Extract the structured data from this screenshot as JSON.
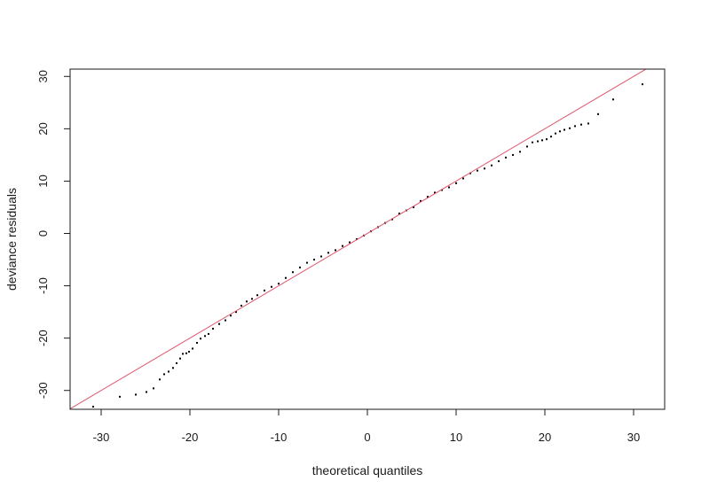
{
  "chart_data": {
    "type": "scatter",
    "title": "",
    "xlabel": "theoretical quantiles",
    "ylabel": "deviance residuals",
    "xlim": [
      -33.5,
      33.5
    ],
    "ylim": [
      -33.6,
      31.4
    ],
    "xticks": [
      -30,
      -20,
      -10,
      0,
      10,
      20,
      30
    ],
    "yticks": [
      -30,
      -20,
      -10,
      0,
      10,
      20,
      30
    ],
    "xtick_labels": [
      "-30",
      "-20",
      "-10",
      "0",
      "10",
      "20",
      "30"
    ],
    "ytick_labels": [
      "-30",
      "-20",
      "-10",
      "0",
      "10",
      "20",
      "30"
    ],
    "grid": false,
    "reference_line": {
      "slope": 1,
      "intercept": 0,
      "color": "#DF536B"
    },
    "point_color": "#000000",
    "series": [
      {
        "x": [
          -30.9,
          -27.9,
          -26.1,
          -24.9,
          -24.1,
          -23.4,
          -22.9,
          -22.4,
          -21.9,
          -21.5,
          -21.1,
          -20.8,
          -20.4,
          -20.1,
          -19.7,
          -19.2,
          -18.8,
          -18.3,
          -17.9,
          -17.4,
          -16.7,
          -16.0,
          -15.4,
          -14.8,
          -14.2,
          -13.6,
          -13.0,
          -12.4,
          -11.6,
          -10.8,
          -10.0,
          -9.2,
          -8.4,
          -7.6,
          -6.8,
          -6.0,
          -5.2,
          -4.4,
          -3.6,
          -2.8,
          -2.0,
          -1.2,
          -0.4,
          0.4,
          1.2,
          2.0,
          2.8,
          3.6,
          4.4,
          5.2,
          6.0,
          6.8,
          7.6,
          8.4,
          9.2,
          10.0,
          10.8,
          11.6,
          12.4,
          13.2,
          14.0,
          14.8,
          15.6,
          16.4,
          17.2,
          18.0,
          18.6,
          19.2,
          19.7,
          20.2,
          20.7,
          21.2,
          21.7,
          22.2,
          22.8,
          23.4,
          24.1,
          24.9,
          26.0,
          27.7,
          31.0
        ],
        "y": [
          -33.1,
          -31.2,
          -30.8,
          -30.3,
          -29.6,
          -27.9,
          -26.9,
          -26.4,
          -25.7,
          -24.8,
          -23.9,
          -23.0,
          -22.9,
          -22.6,
          -22.0,
          -20.9,
          -20.1,
          -19.6,
          -19.2,
          -18.2,
          -17.3,
          -16.6,
          -15.7,
          -15.0,
          -13.8,
          -13.0,
          -12.5,
          -11.8,
          -10.9,
          -10.2,
          -9.6,
          -8.5,
          -7.4,
          -6.5,
          -5.6,
          -5.0,
          -4.4,
          -3.7,
          -3.2,
          -2.4,
          -1.7,
          -1.1,
          -0.4,
          0.4,
          1.2,
          2.0,
          2.7,
          3.8,
          4.4,
          5.0,
          6.2,
          7.0,
          7.8,
          8.3,
          8.8,
          9.6,
          10.5,
          11.5,
          12.0,
          12.4,
          13.0,
          13.8,
          14.5,
          15.0,
          15.6,
          16.6,
          17.4,
          17.6,
          17.8,
          18.0,
          18.5,
          19.1,
          19.5,
          19.8,
          20.1,
          20.5,
          20.8,
          21.0,
          22.8,
          25.6,
          28.5
        ]
      }
    ]
  }
}
